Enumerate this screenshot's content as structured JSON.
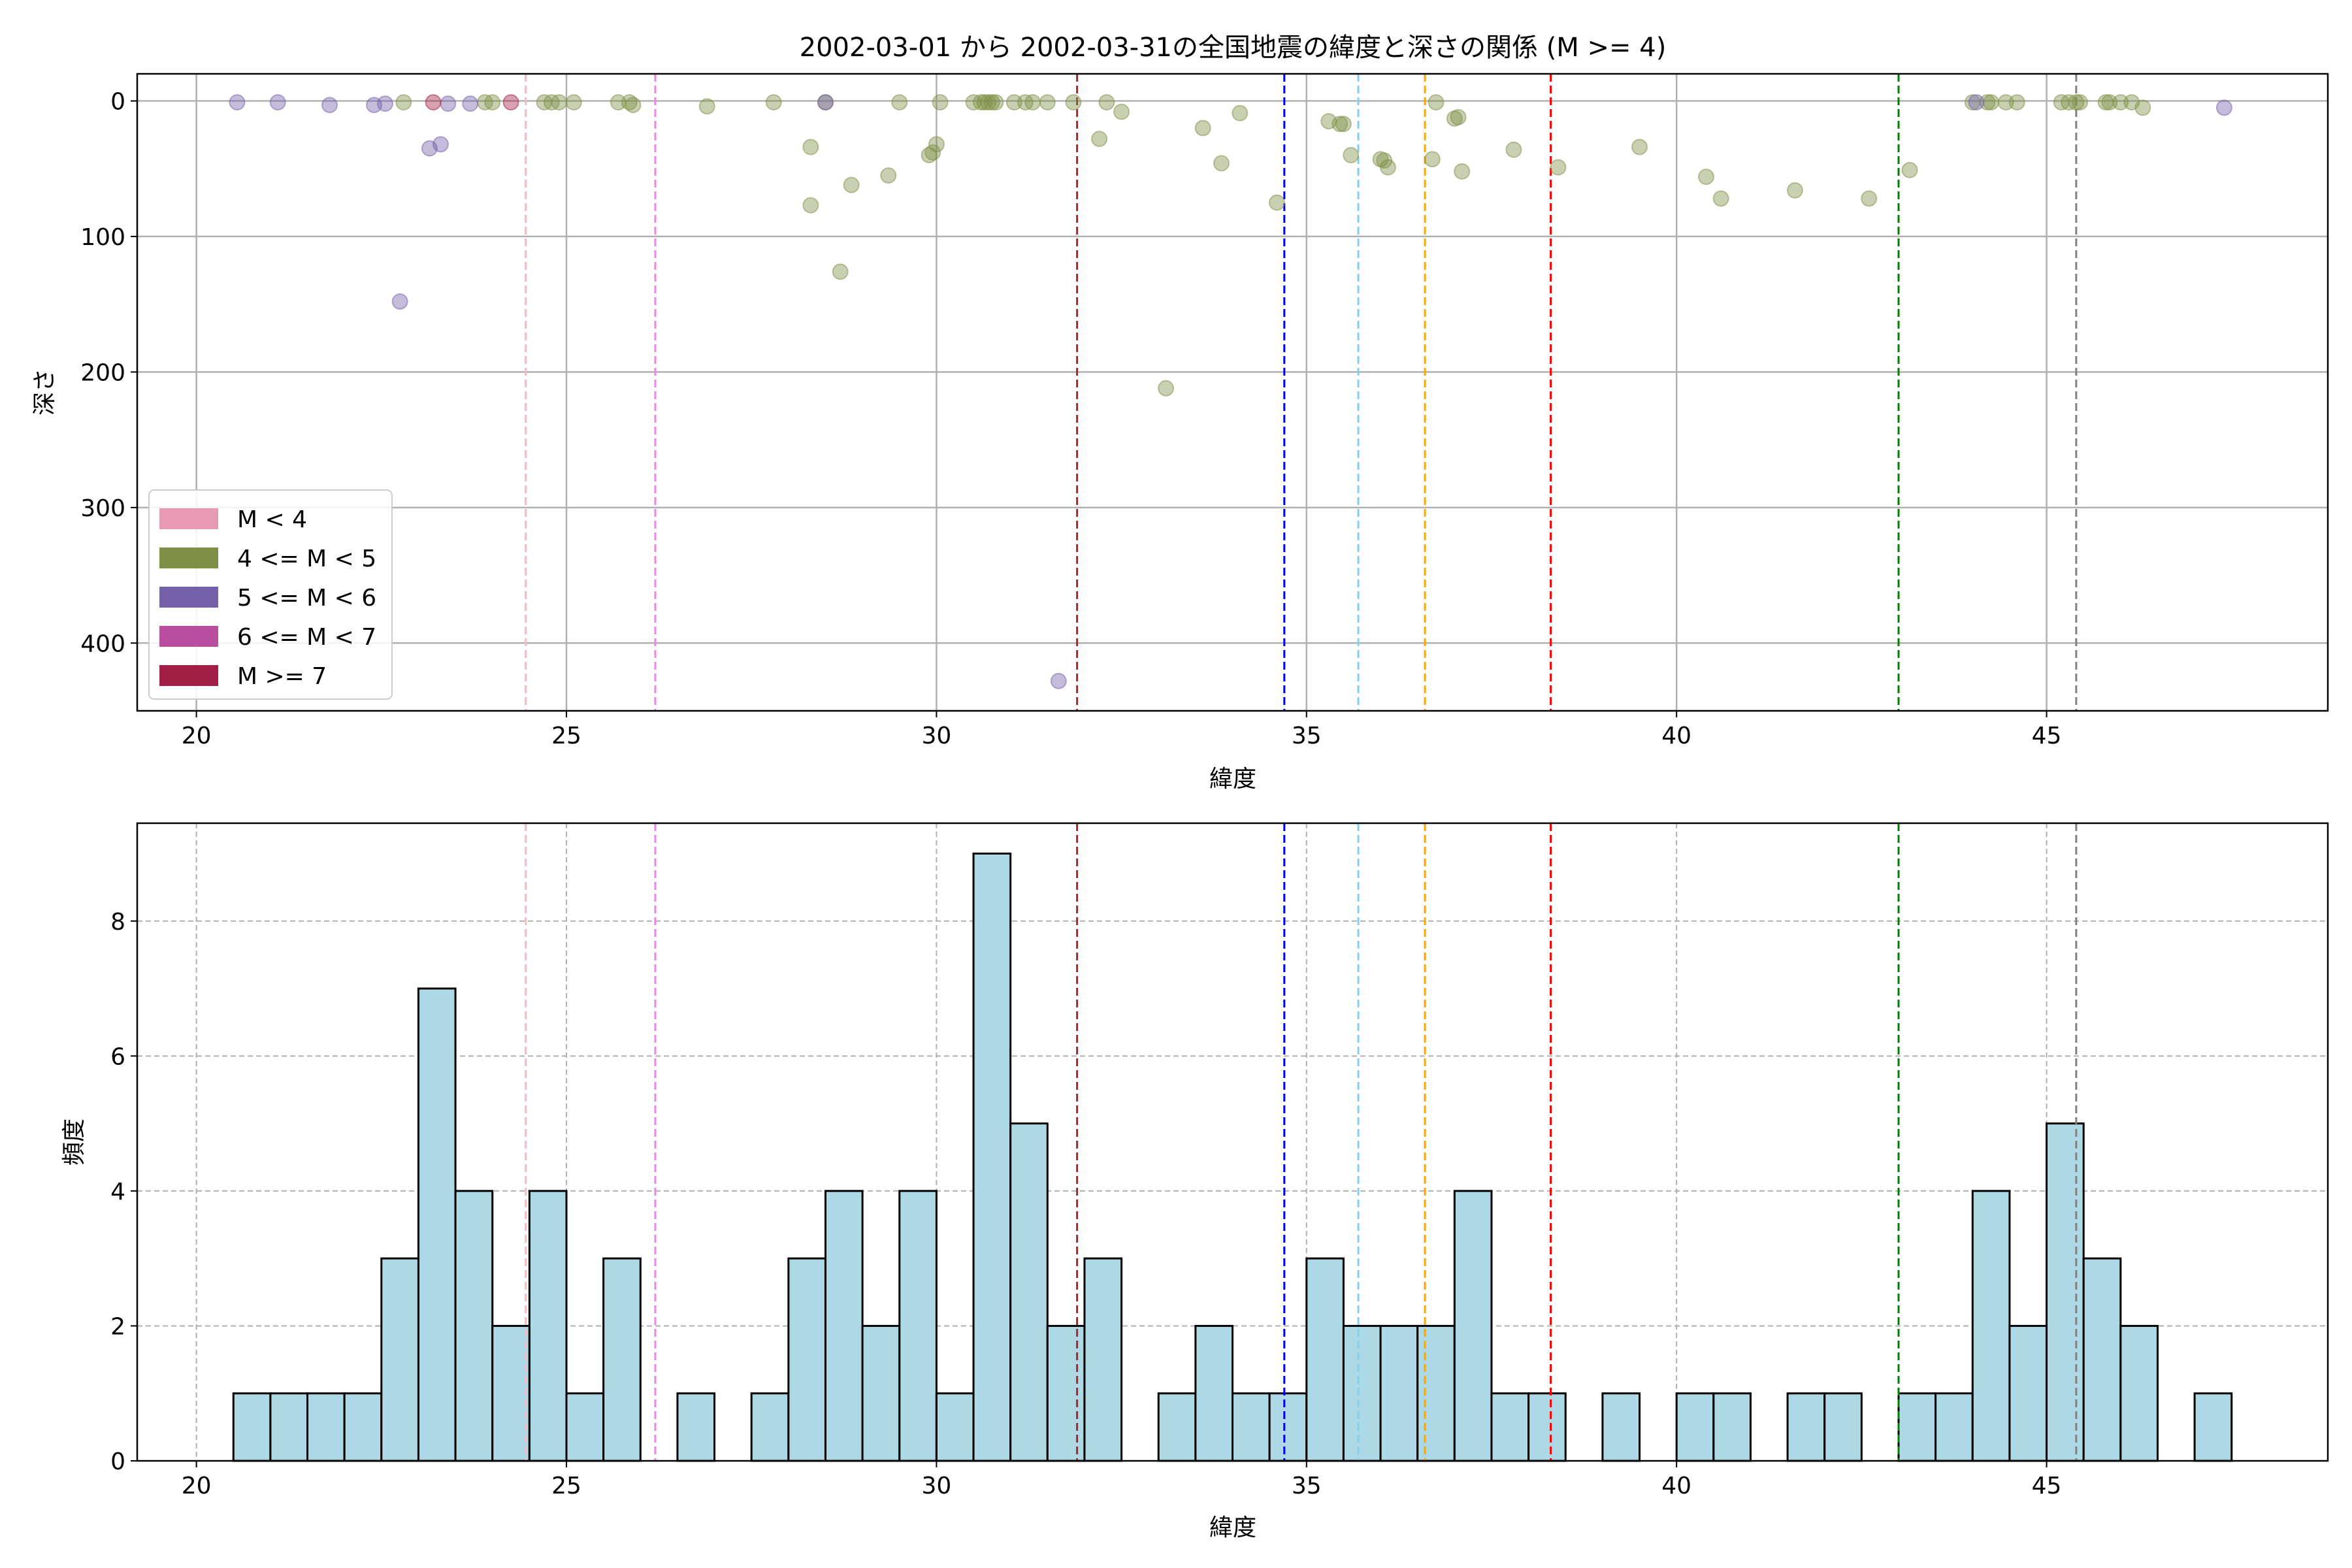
{
  "chart_data": [
    {
      "type": "scatter",
      "title": "2002-03-01 から 2002-03-31の全国地震の緯度と深さの関係 (M >= 4)",
      "xlabel": "緯度",
      "ylabel": "深さ",
      "xlim": [
        19.2,
        48.8
      ],
      "ylim": [
        450,
        -20
      ],
      "y_inverted": true,
      "grid": true,
      "xticks": [
        20,
        25,
        30,
        35,
        40,
        45
      ],
      "yticks": [
        0,
        100,
        200,
        300,
        400
      ],
      "legend": {
        "placement": "lower-left",
        "entries": [
          {
            "label": "M < 4",
            "color": "#e899b3"
          },
          {
            "label": "4 <= M < 5",
            "color": "#7f8f46"
          },
          {
            "label": "5 <= M < 6",
            "color": "#7560aa"
          },
          {
            "label": "6 <= M < 7",
            "color": "#b94e9e"
          },
          {
            "label": "M >= 7",
            "color": "#a11f45"
          }
        ]
      },
      "vlines": [
        {
          "x": 24.45,
          "color": "#ffb6c1"
        },
        {
          "x": 26.2,
          "color": "#ee82ee"
        },
        {
          "x": 31.9,
          "color": "#a52a2a"
        },
        {
          "x": 34.7,
          "color": "#0000ff"
        },
        {
          "x": 35.7,
          "color": "#87ceeb"
        },
        {
          "x": 36.6,
          "color": "#ffa500"
        },
        {
          "x": 38.3,
          "color": "#ff0000"
        },
        {
          "x": 43.0,
          "color": "#008000"
        },
        {
          "x": 45.4,
          "color": "#808080"
        }
      ],
      "series": [
        {
          "name": "4 <= M < 5",
          "color": "#7f8f46",
          "points": [
            [
              22.8,
              1
            ],
            [
              23.9,
              1
            ],
            [
              24.0,
              1
            ],
            [
              24.7,
              1
            ],
            [
              24.8,
              1
            ],
            [
              24.9,
              1
            ],
            [
              25.1,
              1
            ],
            [
              25.7,
              1
            ],
            [
              25.85,
              1
            ],
            [
              25.9,
              3
            ],
            [
              26.9,
              4
            ],
            [
              27.8,
              1
            ],
            [
              28.3,
              34
            ],
            [
              28.3,
              77
            ],
            [
              28.5,
              1
            ],
            [
              28.7,
              126
            ],
            [
              28.85,
              62
            ],
            [
              29.35,
              55
            ],
            [
              29.5,
              1
            ],
            [
              29.9,
              40
            ],
            [
              29.95,
              38
            ],
            [
              30.0,
              32
            ],
            [
              30.05,
              1
            ],
            [
              30.5,
              1
            ],
            [
              30.6,
              1
            ],
            [
              30.65,
              1
            ],
            [
              30.7,
              1
            ],
            [
              30.75,
              1
            ],
            [
              30.8,
              1
            ],
            [
              31.05,
              1
            ],
            [
              31.2,
              1
            ],
            [
              31.3,
              1
            ],
            [
              31.5,
              1
            ],
            [
              31.85,
              1
            ],
            [
              32.2,
              28
            ],
            [
              32.3,
              1
            ],
            [
              32.5,
              8
            ],
            [
              33.1,
              212
            ],
            [
              33.6,
              20
            ],
            [
              33.85,
              46
            ],
            [
              34.1,
              9
            ],
            [
              34.6,
              75
            ],
            [
              35.3,
              15
            ],
            [
              35.45,
              17
            ],
            [
              35.5,
              17
            ],
            [
              35.6,
              40
            ],
            [
              36.0,
              43
            ],
            [
              36.05,
              44
            ],
            [
              36.1,
              49
            ],
            [
              36.7,
              43
            ],
            [
              36.75,
              1
            ],
            [
              37.0,
              13
            ],
            [
              37.05,
              12
            ],
            [
              37.1,
              52
            ],
            [
              37.8,
              36
            ],
            [
              38.4,
              49
            ],
            [
              39.5,
              34
            ],
            [
              40.4,
              56
            ],
            [
              40.6,
              72
            ],
            [
              41.6,
              66
            ],
            [
              42.6,
              72
            ],
            [
              43.15,
              51
            ],
            [
              44.0,
              1
            ],
            [
              44.2,
              1
            ],
            [
              44.25,
              1
            ],
            [
              44.45,
              1
            ],
            [
              44.6,
              1
            ],
            [
              45.2,
              1
            ],
            [
              45.3,
              1
            ],
            [
              45.4,
              1
            ],
            [
              45.45,
              1
            ],
            [
              45.8,
              1
            ],
            [
              45.85,
              1
            ],
            [
              46.0,
              1
            ],
            [
              46.15,
              1
            ],
            [
              46.3,
              5
            ]
          ]
        },
        {
          "name": "5 <= M < 6",
          "color": "#7560aa",
          "points": [
            [
              20.55,
              1
            ],
            [
              21.1,
              1
            ],
            [
              21.8,
              3
            ],
            [
              22.4,
              3
            ],
            [
              22.55,
              2
            ],
            [
              22.75,
              148
            ],
            [
              23.15,
              35
            ],
            [
              23.3,
              32
            ],
            [
              23.4,
              2
            ],
            [
              23.7,
              2
            ],
            [
              28.5,
              1
            ],
            [
              31.65,
              428
            ],
            [
              44.05,
              1
            ],
            [
              47.4,
              5
            ]
          ]
        },
        {
          "name": "M >= 7",
          "color": "#a11f45",
          "points": [
            [
              23.2,
              1
            ],
            [
              24.25,
              1
            ]
          ]
        }
      ]
    },
    {
      "type": "bar",
      "subtype": "histogram",
      "xlabel": "緯度",
      "ylabel": "頻度",
      "xlim": [
        19.2,
        48.8
      ],
      "ylim": [
        0,
        9.45
      ],
      "grid": true,
      "xticks": [
        20,
        25,
        30,
        35,
        40,
        45
      ],
      "yticks": [
        0,
        2,
        4,
        6,
        8
      ],
      "bin_start": 20.5,
      "bin_width": 0.5,
      "bar_color": "#add8e6",
      "values": [
        1,
        1,
        1,
        1,
        3,
        7,
        4,
        2,
        4,
        1,
        3,
        0,
        1,
        0,
        1,
        3,
        4,
        2,
        4,
        1,
        9,
        5,
        2,
        3,
        0,
        1,
        2,
        1,
        1,
        3,
        2,
        2,
        2,
        4,
        1,
        1,
        0,
        1,
        0,
        1,
        1,
        0,
        1,
        1,
        0,
        1,
        1,
        4,
        2,
        5,
        3,
        2,
        0,
        1
      ],
      "vlines": [
        {
          "x": 24.45,
          "color": "#ffb6c1"
        },
        {
          "x": 26.2,
          "color": "#ee82ee"
        },
        {
          "x": 31.9,
          "color": "#a52a2a"
        },
        {
          "x": 34.7,
          "color": "#0000ff"
        },
        {
          "x": 35.7,
          "color": "#87ceeb"
        },
        {
          "x": 36.6,
          "color": "#ffa500"
        },
        {
          "x": 38.3,
          "color": "#ff0000"
        },
        {
          "x": 43.0,
          "color": "#008000"
        },
        {
          "x": 45.4,
          "color": "#808080"
        }
      ]
    }
  ]
}
